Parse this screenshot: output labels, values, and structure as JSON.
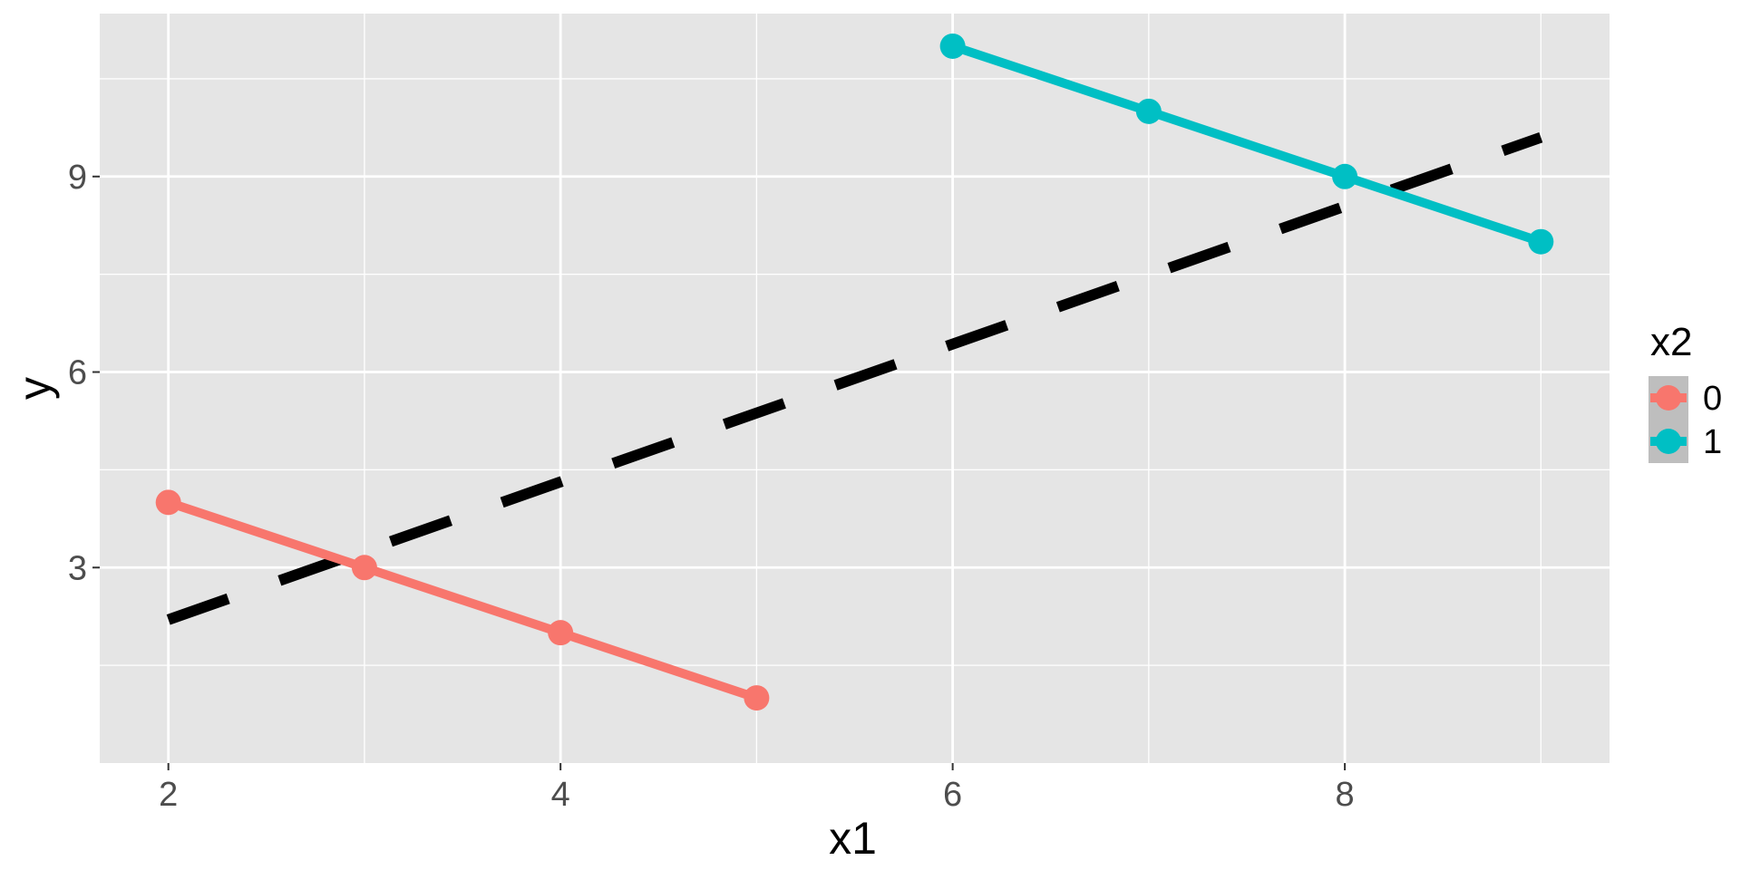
{
  "chart_data": {
    "type": "line",
    "xlabel": "x1",
    "ylabel": "y",
    "xlim": [
      1.65,
      9.35
    ],
    "ylim": [
      0.0,
      11.5
    ],
    "x_ticks": [
      2,
      4,
      6,
      8
    ],
    "x_tick_labels": [
      "2",
      "4",
      "6",
      "8"
    ],
    "y_ticks": [
      3,
      6,
      9
    ],
    "y_tick_labels": [
      "3",
      "6",
      "9"
    ],
    "x_minor_grid": [
      3,
      5,
      7,
      9
    ],
    "y_minor_grid": [
      1.5,
      4.5,
      7.5,
      10.5
    ],
    "grid": true,
    "legend": {
      "title": "x2",
      "position": "right",
      "entries": [
        "0",
        "1"
      ]
    },
    "series": [
      {
        "name": "0",
        "color": "#F8766D",
        "x": [
          2,
          3,
          4,
          5
        ],
        "y": [
          4,
          3,
          2,
          1
        ]
      },
      {
        "name": "1",
        "color": "#00BFC4",
        "x": [
          6,
          7,
          8,
          9
        ],
        "y": [
          11,
          10,
          9,
          8
        ]
      }
    ],
    "reference_line": {
      "style": "dashed",
      "color": "#000000",
      "x": [
        2,
        9
      ],
      "y": [
        2.2,
        9.6
      ]
    },
    "colors": {
      "panel_background": "#E5E5E5",
      "grid": "#FFFFFF",
      "legend_key_background": "#BEBEBE"
    }
  }
}
